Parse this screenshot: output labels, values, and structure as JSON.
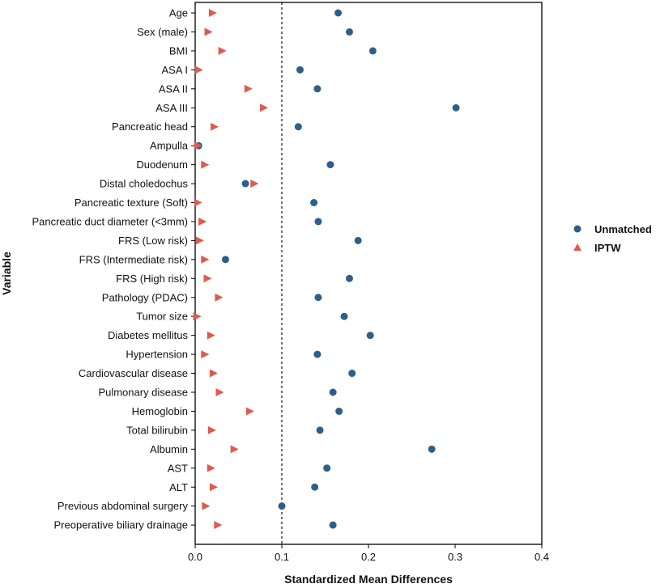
{
  "chart_data": {
    "type": "scatter",
    "title": "",
    "xlabel": "Standardized Mean Differences",
    "ylabel": "Variable",
    "xlim": [
      0,
      0.4
    ],
    "xticks": [
      "0.0",
      "0.1",
      "0.2",
      "0.3",
      "0.4"
    ],
    "reference_line": 0.1,
    "categories": [
      "Age",
      "Sex (male)",
      "BMI",
      "ASA I",
      "ASA II",
      "ASA III",
      "Pancreatic head",
      "Ampulla",
      "Duodenum",
      "Distal choledochus",
      "Pancreatic texture (Soft)",
      "Pancreatic duct diameter (<3mm)",
      "FRS (Low risk)",
      "FRS (Intermediate risk)",
      "FRS (High risk)",
      "Pathology (PDAC)",
      "Tumor size",
      "Diabetes mellitus",
      "Hypertension",
      "Cardiovascular disease",
      "Pulmonary disease",
      "Hemoglobin",
      "Total bilirubin",
      "Albumin",
      "AST",
      "ALT",
      "Previous abdominal surgery",
      "Preoperative biliary drainage"
    ],
    "series": [
      {
        "name": "Unmatched",
        "marker": "circle",
        "color": "#2e5f8a",
        "values": [
          0.165,
          0.178,
          0.205,
          0.121,
          0.141,
          0.301,
          0.119,
          0.004,
          0.156,
          0.058,
          0.137,
          0.142,
          0.188,
          0.035,
          0.178,
          0.142,
          0.172,
          0.202,
          0.141,
          0.181,
          0.159,
          0.166,
          0.144,
          0.273,
          0.152,
          0.138,
          0.1,
          0.159
        ]
      },
      {
        "name": "IPTW",
        "marker": "triangle",
        "color": "#e05a4e",
        "values": [
          0.02,
          0.015,
          0.031,
          0.004,
          0.061,
          0.079,
          0.022,
          0.003,
          0.011,
          0.068,
          0.003,
          0.008,
          0.005,
          0.011,
          0.014,
          0.027,
          0.002,
          0.018,
          0.011,
          0.021,
          0.028,
          0.063,
          0.019,
          0.045,
          0.018,
          0.021,
          0.012,
          0.026
        ]
      }
    ],
    "legend": {
      "position": "right",
      "entries": [
        "Unmatched",
        "IPTW"
      ]
    }
  }
}
